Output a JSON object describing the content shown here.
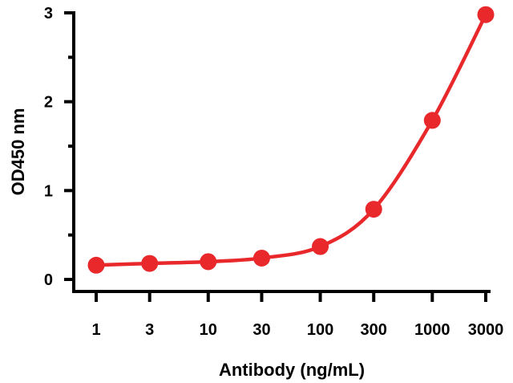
{
  "chart_data": {
    "type": "line",
    "title": "",
    "xlabel": "Antibody (ng/mL)",
    "ylabel": "OD450 nm",
    "x_scale": "log",
    "x_ticks": [
      1,
      3,
      10,
      30,
      100,
      300,
      1000,
      3000
    ],
    "x_tick_labels": [
      "1",
      "3",
      "10",
      "30",
      "100",
      "300",
      "1000",
      "3000"
    ],
    "y_ticks": [
      0,
      1,
      2,
      3
    ],
    "y_tick_labels": [
      "0",
      "1",
      "2",
      "3"
    ],
    "ylim": [
      0,
      3
    ],
    "grid": false,
    "legend": "none",
    "series": [
      {
        "x": [
          1,
          3,
          10,
          30,
          100,
          300,
          1000,
          3000
        ],
        "y": [
          0.16,
          0.18,
          0.2,
          0.24,
          0.37,
          0.79,
          1.79,
          2.98
        ],
        "color": "#e8282b"
      }
    ]
  }
}
